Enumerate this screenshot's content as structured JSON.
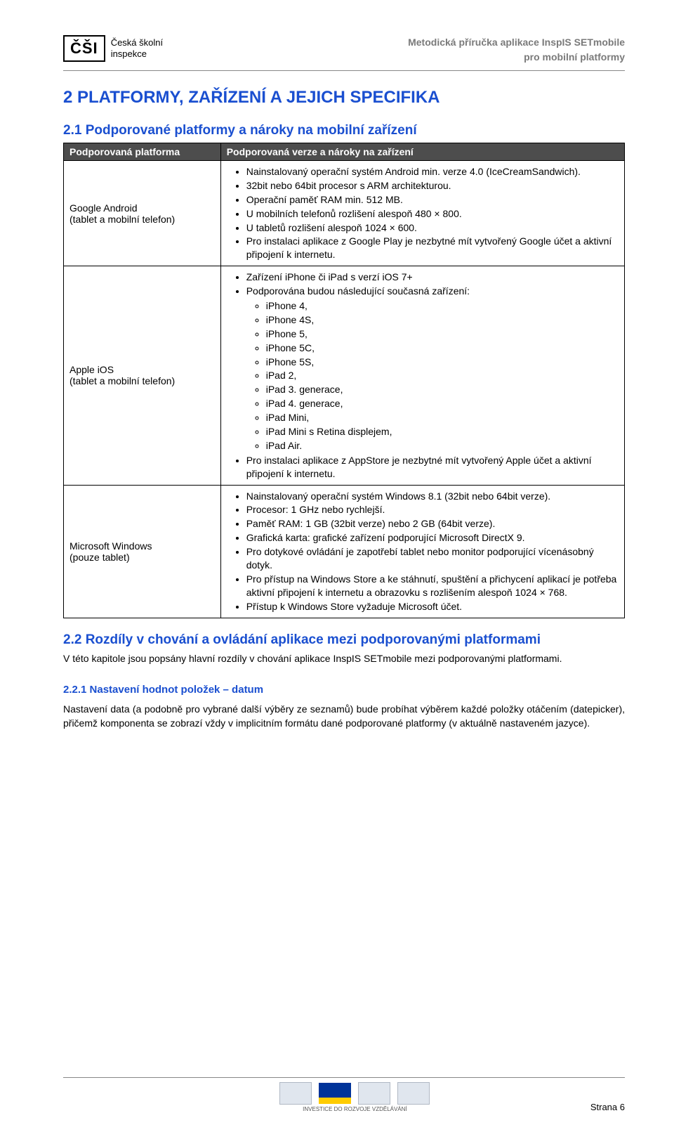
{
  "header": {
    "logo_abbr": "ČŠI",
    "logo_name_line1": "Česká školní",
    "logo_name_line2": "inspekce",
    "right_line1": "Metodická příručka aplikace InspIS SETmobile",
    "right_line2": "pro mobilní platformy"
  },
  "h1": "2  PLATFORMY, ZAŘÍZENÍ A JEJICH SPECIFIKA",
  "section21": {
    "title": "2.1  Podporované platformy a nároky na mobilní zařízení",
    "col1": "Podporovaná platforma",
    "col2": "Podporovaná verze a nároky na zařízení",
    "row1": {
      "platform_name": "Google Android",
      "platform_note": "(tablet a mobilní telefon)",
      "items": [
        "Nainstalovaný operační systém Android min. verze 4.0 (IceCreamSandwich).",
        "32bit nebo 64bit procesor s ARM architekturou.",
        "Operační paměť RAM min. 512 MB.",
        "U mobilních telefonů rozlišení alespoň 480 × 800.",
        "U tabletů rozlišení alespoň 1024 × 600.",
        "Pro instalaci aplikace z Google Play je nezbytné mít vytvořený Google účet a aktivní připojení k internetu."
      ]
    },
    "row2": {
      "platform_name": "Apple iOS",
      "platform_note": "(tablet a mobilní telefon)",
      "items_before": [
        "Zařízení iPhone či iPad s verzí iOS 7+",
        "Podporována budou následující současná zařízení:"
      ],
      "devices": [
        "iPhone 4,",
        "iPhone 4S,",
        "iPhone 5,",
        "iPhone 5C,",
        "iPhone 5S,",
        "iPad 2,",
        "iPad 3. generace,",
        "iPad 4. generace,",
        "iPad Mini,",
        "iPad Mini s Retina displejem,",
        "iPad Air."
      ],
      "items_after": [
        "Pro instalaci aplikace z AppStore je nezbytné mít vytvořený Apple účet a aktivní připojení k internetu."
      ]
    },
    "row3": {
      "platform_name": "Microsoft Windows",
      "platform_note": "(pouze tablet)",
      "items": [
        "Nainstalovaný operační systém Windows 8.1 (32bit nebo 64bit verze).",
        "Procesor: 1 GHz nebo rychlejší.",
        "Paměť RAM: 1 GB (32bit verze) nebo 2 GB (64bit verze).",
        "Grafická karta: grafické zařízení podporující Microsoft DirectX 9.",
        "Pro dotykové ovládání je zapotřebí tablet nebo monitor podporující vícenásobný dotyk.",
        "Pro přístup na Windows Store a ke stáhnutí, spuštění a přichycení aplikací je potřeba aktivní připojení k internetu a obrazovku s rozlišením alespoň 1024 × 768.",
        "Přístup k Windows Store vyžaduje Microsoft účet."
      ]
    }
  },
  "section22": {
    "title": "2.2  Rozdíly v chování a ovládání aplikace mezi podporovanými platformami",
    "para": "V této kapitole jsou popsány hlavní rozdíly v chování aplikace InspIS SETmobile mezi podporovanými platformami."
  },
  "section221": {
    "title": "2.2.1  Nastavení hodnot položek – datum",
    "para": "Nastavení data (a podobně pro vybrané další výběry ze seznamů) bude probíhat výběrem každé položky otáčením (datepicker), přičemž komponenta se zobrazí vždy v implicitním formátu dané podporované platformy (v aktuálně nastaveném jazyce)."
  },
  "footer": {
    "page": "Strana 6",
    "caption": "INVESTICE DO ROZVOJE VZDĚLÁVÁNÍ"
  },
  "colors": {
    "heading": "#1a4fd0",
    "table_header_bg": "#4d4d4d",
    "table_header_fg": "#ffffff",
    "header_right": "#7a7a7a"
  }
}
